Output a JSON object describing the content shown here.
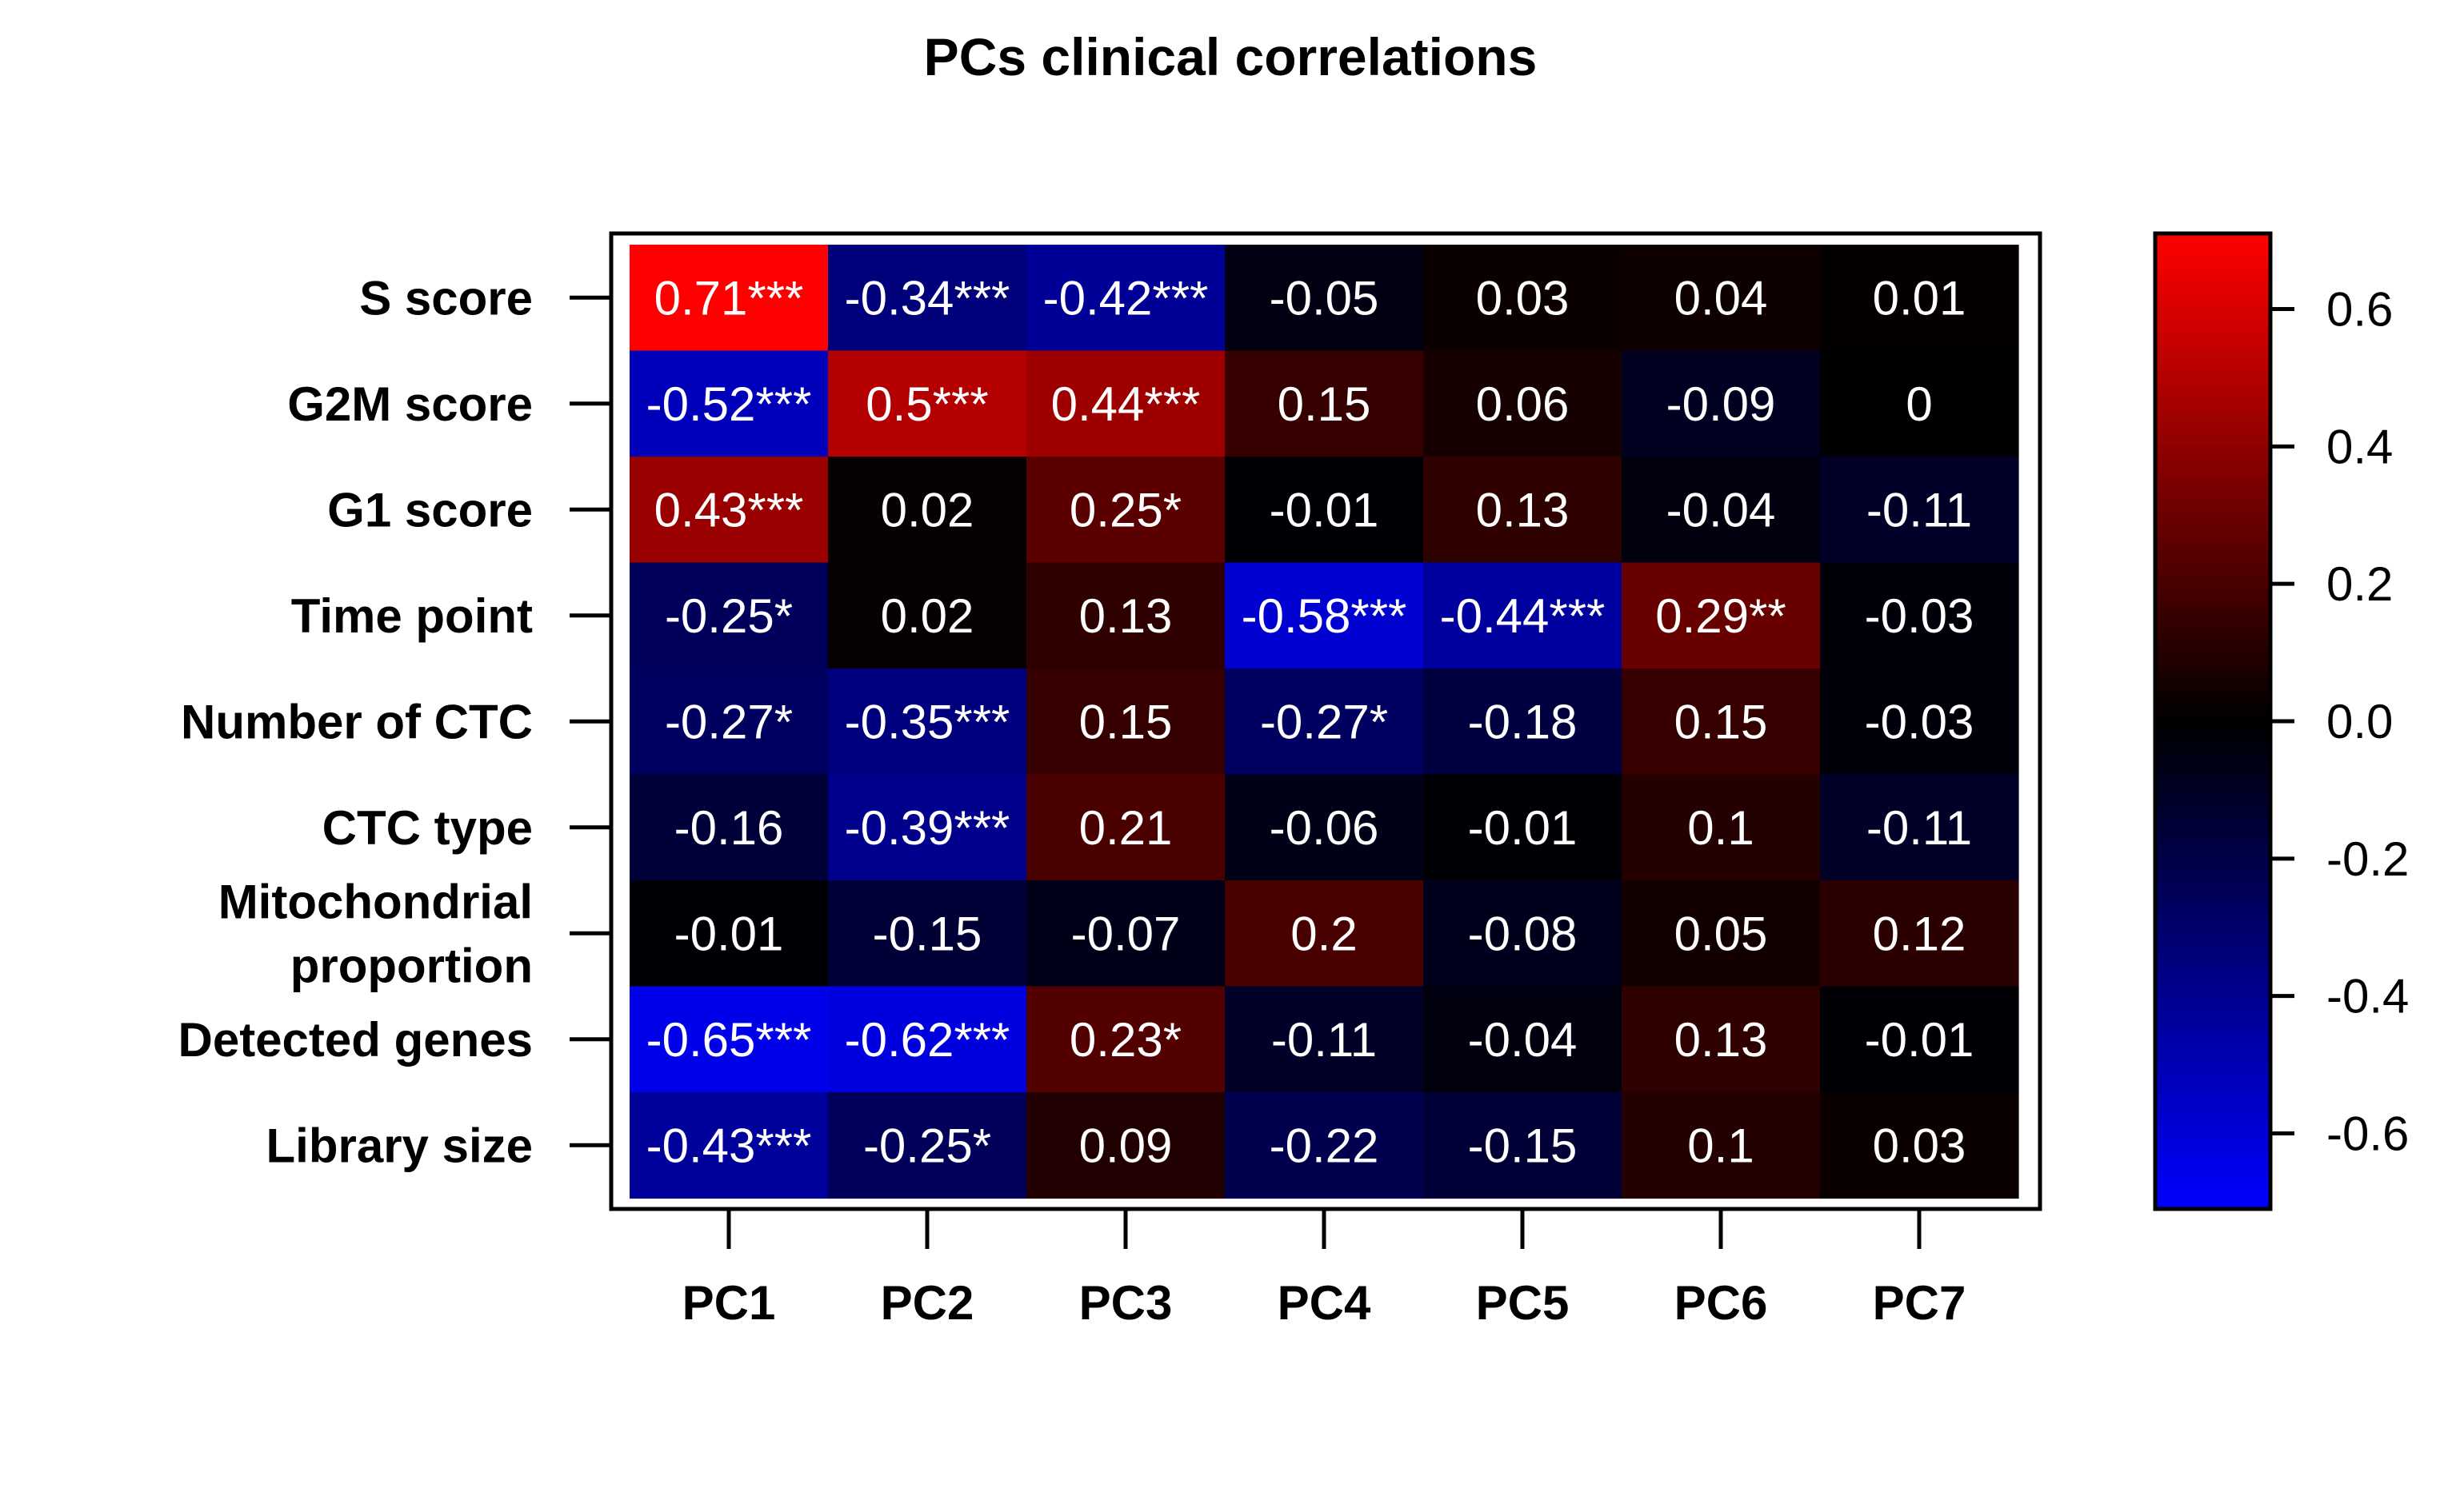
{
  "chart_data": {
    "type": "heatmap",
    "title": "PCs clinical correlations",
    "columns": [
      "PC1",
      "PC2",
      "PC3",
      "PC4",
      "PC5",
      "PC6",
      "PC7"
    ],
    "rows": [
      [
        "S score"
      ],
      [
        "G2M score"
      ],
      [
        "G1 score"
      ],
      [
        "Time point"
      ],
      [
        "Number of CTC"
      ],
      [
        "CTC type"
      ],
      [
        "Mitochondrial",
        "proportion"
      ],
      [
        "Detected genes"
      ],
      [
        "Library size"
      ]
    ],
    "values": [
      [
        0.71,
        -0.34,
        -0.42,
        -0.05,
        0.03,
        0.04,
        0.01
      ],
      [
        -0.52,
        0.5,
        0.44,
        0.15,
        0.06,
        -0.09,
        0
      ],
      [
        0.43,
        0.02,
        0.25,
        -0.01,
        0.13,
        -0.04,
        -0.11
      ],
      [
        -0.25,
        0.02,
        0.13,
        -0.58,
        -0.44,
        0.29,
        -0.03
      ],
      [
        -0.27,
        -0.35,
        0.15,
        -0.27,
        -0.18,
        0.15,
        -0.03
      ],
      [
        -0.16,
        -0.39,
        0.21,
        -0.06,
        -0.01,
        0.1,
        -0.11
      ],
      [
        -0.01,
        -0.15,
        -0.07,
        0.2,
        -0.08,
        0.05,
        0.12
      ],
      [
        -0.65,
        -0.62,
        0.23,
        -0.11,
        -0.04,
        0.13,
        -0.01
      ],
      [
        -0.43,
        -0.25,
        0.09,
        -0.22,
        -0.15,
        0.1,
        0.03
      ]
    ],
    "labels": [
      [
        "0.71***",
        "-0.34***",
        "-0.42***",
        "-0.05",
        "0.03",
        "0.04",
        "0.01"
      ],
      [
        "-0.52***",
        "0.5***",
        "0.44***",
        "0.15",
        "0.06",
        "-0.09",
        "0"
      ],
      [
        "0.43***",
        "0.02",
        "0.25*",
        "-0.01",
        "0.13",
        "-0.04",
        "-0.11"
      ],
      [
        "-0.25*",
        "0.02",
        "0.13",
        "-0.58***",
        "-0.44***",
        "0.29**",
        "-0.03"
      ],
      [
        "-0.27*",
        "-0.35***",
        "0.15",
        "-0.27*",
        "-0.18",
        "0.15",
        "-0.03"
      ],
      [
        "-0.16",
        "-0.39***",
        "0.21",
        "-0.06",
        "-0.01",
        "0.1",
        "-0.11"
      ],
      [
        "-0.01",
        "-0.15",
        "-0.07",
        "0.2",
        "-0.08",
        "0.05",
        "0.12"
      ],
      [
        "-0.65***",
        "-0.62***",
        "0.23*",
        "-0.11",
        "-0.04",
        "0.13",
        "-0.01"
      ],
      [
        "-0.43***",
        "-0.25*",
        "0.09",
        "-0.22",
        "-0.15",
        "0.1",
        "0.03"
      ]
    ],
    "color_scale": {
      "range": [
        -0.71,
        0.71
      ],
      "colors": [
        "#0000ff",
        "#000000",
        "#ff0000"
      ],
      "ticks": [
        0.6,
        0.4,
        0.2,
        0.0,
        -0.2,
        -0.4,
        -0.6
      ],
      "tick_labels": [
        "0.6",
        "0.4",
        "0.2",
        "0.0",
        "-0.2",
        "-0.4",
        "-0.6"
      ]
    },
    "legend": "right"
  }
}
